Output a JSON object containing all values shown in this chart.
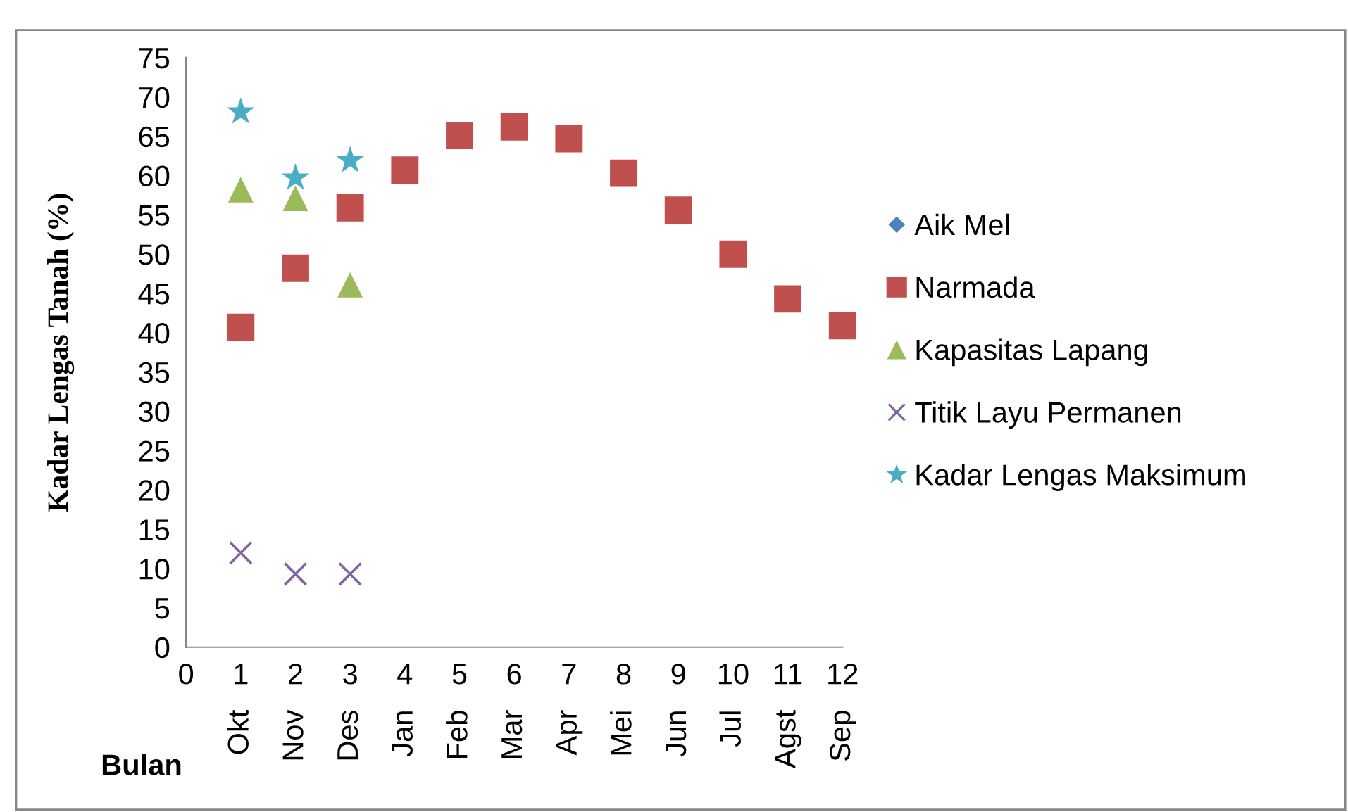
{
  "chart_data": {
    "type": "scatter",
    "xlabel": "Bulan",
    "ylabel": "Kadar Lengas Tanah (%)",
    "categories": [
      "Okt",
      "Nov",
      "Des",
      "Jan",
      "Feb",
      "Mar",
      "Apr",
      "Mei",
      "Jun",
      "Jul",
      "Agst",
      "Sep"
    ],
    "x2lim": [
      0,
      12
    ],
    "x2ticks": [
      0,
      1,
      2,
      3,
      4,
      5,
      6,
      7,
      8,
      9,
      10,
      11,
      12
    ],
    "ylim": [
      0,
      75
    ],
    "yticks": [
      0,
      5,
      10,
      15,
      20,
      25,
      30,
      35,
      40,
      45,
      50,
      55,
      60,
      65,
      70,
      75
    ],
    "legend": "right",
    "series": [
      {
        "name": "Aik Mel",
        "color": "#4f81bd",
        "marker": "diamond",
        "values": [
          null,
          null,
          null,
          null,
          null,
          null,
          null,
          null,
          null,
          null,
          null,
          null
        ]
      },
      {
        "name": "Narmada",
        "color": "#c0504d",
        "marker": "square",
        "values": [
          40.7,
          48.2,
          55.9,
          60.7,
          65.1,
          66.2,
          64.7,
          60.3,
          55.6,
          50.0,
          44.3,
          40.9
        ]
      },
      {
        "name": "Kapasitas Lapang",
        "color": "#9bbb59",
        "marker": "triangle",
        "values": [
          58.2,
          57.1,
          46.1,
          null,
          null,
          null,
          null,
          null,
          null,
          null,
          null,
          null
        ]
      },
      {
        "name": "Titik Layu Permanen",
        "color": "#8064a2",
        "marker": "cross",
        "values": [
          12.0,
          9.3,
          9.3,
          null,
          null,
          null,
          null,
          null,
          null,
          null,
          null,
          null
        ]
      },
      {
        "name": "Kadar Lengas Maksimum",
        "color": "#4bacc6",
        "marker": "star",
        "values": [
          68.1,
          59.7,
          61.9,
          null,
          null,
          null,
          null,
          null,
          null,
          null,
          null,
          null
        ]
      }
    ]
  }
}
